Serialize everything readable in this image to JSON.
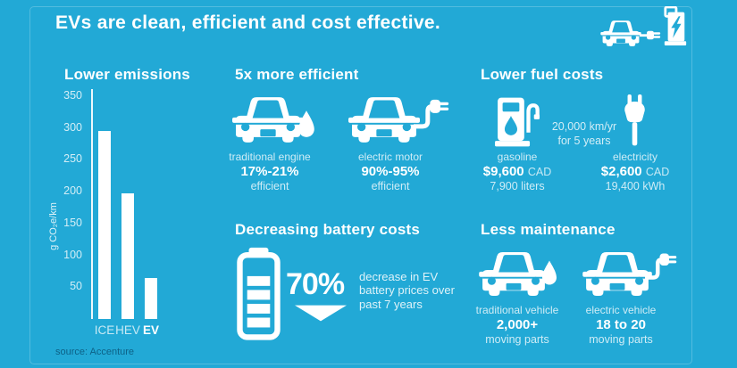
{
  "title": "EVs are clean, efficient and cost effective.",
  "source": "source: Accenture",
  "colors": {
    "background": "#22A9D6",
    "foreground": "#FFFFFF",
    "source_text": "#0D6287"
  },
  "icons": [
    "car-charging-station-icon",
    "car-front-icon",
    "fuel-droplet-icon",
    "plug-icon",
    "gas-pump-icon",
    "battery-icon",
    "down-arrow-icon"
  ],
  "sections": {
    "efficiency": {
      "heading": "5x more efficient",
      "traditional": {
        "label": "traditional engine",
        "value": "17%-21%",
        "suffix": "efficient"
      },
      "electric": {
        "label": "electric motor",
        "value": "90%-95%",
        "suffix": "efficient"
      }
    },
    "fuel": {
      "heading": "Lower fuel costs",
      "assumption": {
        "line1": "20,000 km/yr",
        "line2": "for 5 years"
      },
      "gasoline": {
        "label": "gasoline",
        "amount": "$9,600",
        "currency": "CAD",
        "quantity": "7,900 liters"
      },
      "electricity": {
        "label": "electricity",
        "amount": "$2,600",
        "currency": "CAD",
        "quantity": "19,400 kWh"
      }
    },
    "battery": {
      "heading": "Decreasing battery costs",
      "value": "70%",
      "description": "decrease in EV battery prices over past 7 years"
    },
    "maintenance": {
      "heading": "Less maintenance",
      "traditional": {
        "label": "traditional vehicle",
        "value": "2,000+",
        "suffix": "moving parts"
      },
      "electric": {
        "label": "electric vehicle",
        "value": "18 to 20",
        "suffix": "moving parts"
      }
    }
  },
  "chart_data": {
    "type": "bar",
    "title": "Lower emissions",
    "ylabel": "g CO₂e/km",
    "categories": [
      "ICE",
      "HEV",
      "EV"
    ],
    "values": [
      295,
      197,
      65
    ],
    "ylim": [
      0,
      350
    ],
    "yticks": [
      50,
      100,
      150,
      200,
      250,
      300,
      350
    ],
    "emphasis_category": "EV",
    "grid": false,
    "legend": false
  }
}
